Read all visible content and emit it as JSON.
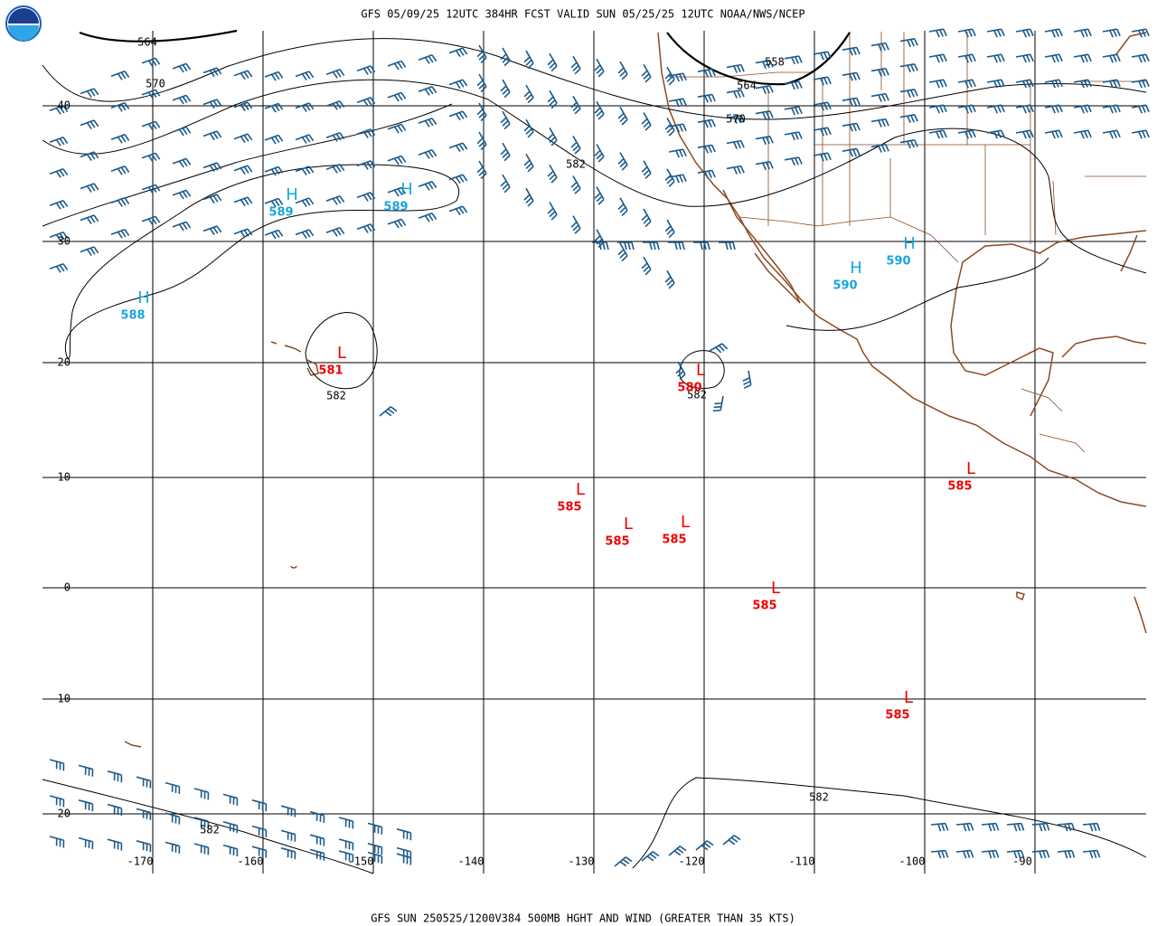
{
  "header": {
    "title": "GFS 05/09/25 12UTC 384HR FCST VALID SUN 05/25/25 12UTC NOAA/NWS/NCEP"
  },
  "footer": {
    "title": "GFS SUN 250525/1200V384 500MB HGHT AND WIND (GREATER THAN 35 KTS)"
  },
  "map": {
    "lat_labels": [
      "40",
      "30",
      "20",
      "10",
      "0",
      "-10",
      "-20"
    ],
    "lon_labels": [
      "-170",
      "-160",
      "-150",
      "-140",
      "-130",
      "-120",
      "-110",
      "-100",
      "-90"
    ],
    "contour_labels": [
      "564",
      "570",
      "582",
      "558",
      "564",
      "570",
      "582",
      "582",
      "582",
      "582"
    ],
    "centers": [
      {
        "symbol": "H",
        "value": "589"
      },
      {
        "symbol": "H",
        "value": "589"
      },
      {
        "symbol": "H",
        "value": "588"
      },
      {
        "symbol": "H",
        "value": "590"
      },
      {
        "symbol": "H",
        "value": "590"
      },
      {
        "symbol": "L",
        "value": "581"
      },
      {
        "symbol": "L",
        "value": "580"
      },
      {
        "symbol": "L",
        "value": "585"
      },
      {
        "symbol": "L",
        "value": "585"
      },
      {
        "symbol": "L",
        "value": "585"
      },
      {
        "symbol": "L",
        "value": "585"
      },
      {
        "symbol": "L",
        "value": "585"
      },
      {
        "symbol": "L",
        "value": "585"
      }
    ]
  }
}
